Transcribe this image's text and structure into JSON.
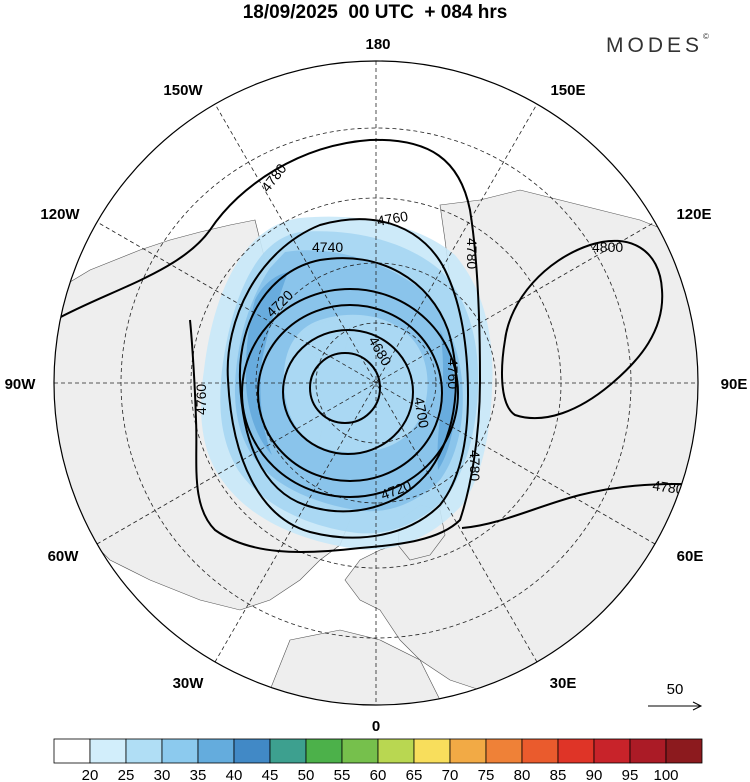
{
  "header": {
    "title": "18/09/2025  00 UTC  + 084 hrs",
    "brand": "MODES",
    "brand_mark": "©"
  },
  "map": {
    "projection": "polar stereographic, north pole centred",
    "longitude_labels": {
      "top": "180",
      "bottom": "0",
      "left": "90W",
      "right": "90E",
      "upper_left_1": "150W",
      "upper_left_2": "120W",
      "upper_right_1": "150E",
      "upper_right_2": "120E",
      "lower_left_1": "60W",
      "lower_left_2": "30W",
      "lower_right_1": "60E",
      "lower_right_2": "30E"
    },
    "contour_labels": {
      "c4780_top": "4780",
      "c4760_top": "4760",
      "c4740": "4740",
      "c4720_top": "4720",
      "c4680": "4680",
      "c4760_left": "4760",
      "c4780_right_vert": "4780",
      "c4800": "4800",
      "c4760_inner_right": "4760",
      "c4700": "4700",
      "c4720_bottom": "4720",
      "c4780_lower": "4780",
      "c4780_far_right": "4780"
    },
    "colors": {
      "land": "#eeeeee",
      "ocean": "#ffffff",
      "contour": "#000000",
      "shade_25": "#c8e8f8",
      "shade_30": "#a6d6f2",
      "shade_35": "#86c2ea",
      "shade_40": "#62a8dc"
    }
  },
  "wind_reference": {
    "label": "50"
  },
  "colorbar": {
    "colors": [
      "#ffffff",
      "#d2eefb",
      "#b0def5",
      "#8ccaee",
      "#64acdd",
      "#4189c6",
      "#3da08f",
      "#4cb14a",
      "#76c04c",
      "#b9d751",
      "#f8de5c",
      "#f2aa45",
      "#ef8137",
      "#ea5b2d",
      "#df3427",
      "#c8232a",
      "#ab1b26",
      "#8c1a1e"
    ],
    "labels": [
      "20",
      "25",
      "30",
      "35",
      "40",
      "45",
      "50",
      "55",
      "60",
      "65",
      "70",
      "75",
      "80",
      "85",
      "90",
      "95",
      "100"
    ]
  }
}
